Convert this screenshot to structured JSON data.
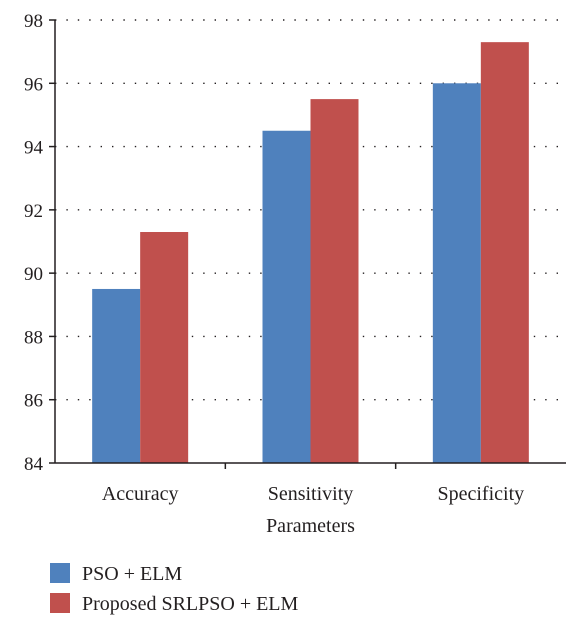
{
  "chart_data": {
    "type": "bar",
    "categories": [
      "Accuracy",
      "Sensitivity",
      "Specificity"
    ],
    "series": [
      {
        "name": "PSO + ELM",
        "values": [
          89.5,
          94.5,
          96.0
        ],
        "color": "#4f81bd"
      },
      {
        "name": "Proposed SRLPSO + ELM",
        "values": [
          91.3,
          95.5,
          97.3
        ],
        "color": "#c0504d"
      }
    ],
    "xlabel": "Parameters",
    "ylabel": "",
    "ylim": [
      84,
      98
    ],
    "yticks": [
      84,
      86,
      88,
      90,
      92,
      94,
      96,
      98
    ],
    "grid": "horizontal-dotted",
    "legend_position": "bottom-left"
  }
}
